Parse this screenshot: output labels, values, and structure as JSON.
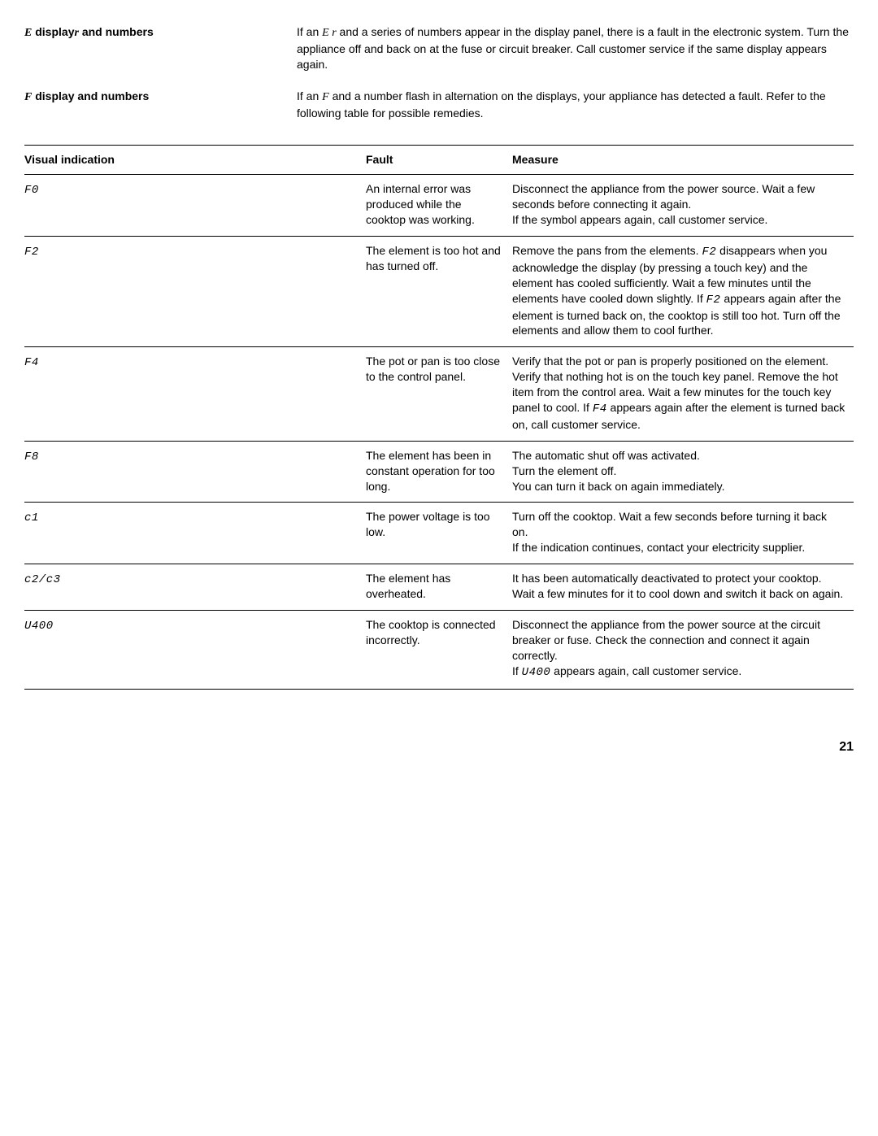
{
  "info": [
    {
      "label_code": "E",
      "label_text": " display",
      "label_code_after": "r",
      "label_after": " and numbers",
      "desc_pre": "If an ",
      "desc_code": "E r",
      "desc_post": " and a series of numbers appear in the display panel, there is a fault in the electronic system. Turn the appliance off and back on at the fuse or circuit breaker. Call customer service if the same display appears again."
    },
    {
      "label_code": "F",
      "label_text": " display and numbers",
      "label_code_after": "",
      "label_after": "",
      "desc_pre": "If an ",
      "desc_code": "F",
      "desc_post": " and a number flash in alternation on the displays, your appliance has detected a fault. Refer to the following table for possible remedies."
    }
  ],
  "table": {
    "headers": {
      "indication": "Visual indication",
      "fault": "Fault",
      "measure": "Measure"
    },
    "rows": [
      {
        "code": "F0",
        "fault": "An internal error was produced while the cooktop was working.",
        "measure_parts": [
          {
            "t": "Disconnect the appliance from the power source. Wait a few seconds before connecting it again."
          },
          {
            "br": true
          },
          {
            "t": "If the symbol appears again, call customer service."
          }
        ]
      },
      {
        "code": "F2",
        "fault": "The element is too hot and has turned off.",
        "measure_parts": [
          {
            "t": "Remove the pans from the elements. "
          },
          {
            "c": "F2"
          },
          {
            "t": " disappears when you acknowledge the display (by pressing a touch key) and the element has cooled sufficiently. Wait a few minutes until the elements have cooled down slightly. If "
          },
          {
            "c": "F2"
          },
          {
            "t": " appears again after the element is turned back on, the cooktop is still too hot. Turn off the elements and allow them to cool further."
          }
        ]
      },
      {
        "code": "F4",
        "fault": "The pot or pan is too close to the control panel.",
        "measure_parts": [
          {
            "t": "Verify that the pot or pan is properly positioned on the element. Verify that nothing hot is on the touch key panel. Remove the hot item from the control area. Wait a few minutes for the touch key panel to cool. If "
          },
          {
            "c": "F4"
          },
          {
            "t": " appears again after the element is turned back on, call customer service."
          }
        ]
      },
      {
        "code": "F8",
        "fault": "The element has been in constant operation for too long.",
        "measure_parts": [
          {
            "t": "The automatic shut off was activated."
          },
          {
            "br": true
          },
          {
            "t": "Turn the element off."
          },
          {
            "br": true
          },
          {
            "t": "You can turn it back on again immediately."
          }
        ]
      },
      {
        "code": "c1",
        "fault": "The power voltage is too low.",
        "measure_parts": [
          {
            "t": "Turn off the cooktop. Wait a few seconds before turning it back on."
          },
          {
            "br": true
          },
          {
            "t": "If the indication continues, contact your electricity supplier."
          }
        ]
      },
      {
        "code": "c2/c3",
        "fault": "The element has overheated.",
        "measure_parts": [
          {
            "t": "It has been automatically deactivated to protect your cooktop."
          },
          {
            "br": true
          },
          {
            "t": "Wait a few minutes for it to cool down and switch it back on again."
          }
        ]
      },
      {
        "code": "U400",
        "fault": "The cooktop is connected incorrectly.",
        "measure_parts": [
          {
            "t": "Disconnect the appliance from the power source at the circuit breaker or fuse. Check the connection and connect it again correctly."
          },
          {
            "br": true
          },
          {
            "t": "If "
          },
          {
            "c": "U400"
          },
          {
            "t": " appears again, call customer service."
          }
        ]
      }
    ]
  },
  "page_number": "21"
}
